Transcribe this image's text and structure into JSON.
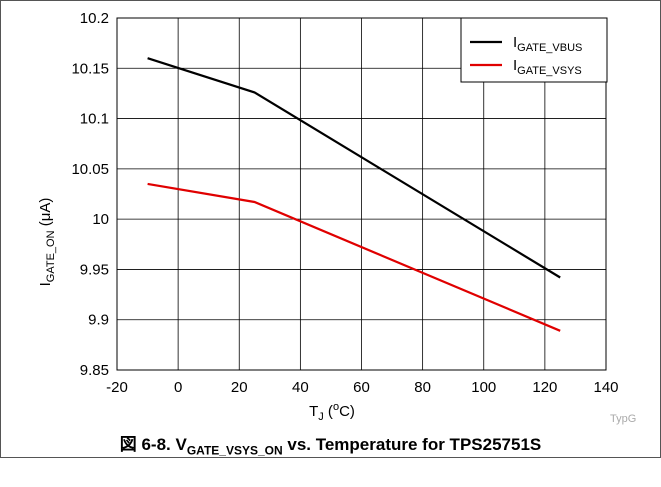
{
  "caption": {
    "prefix": "図 6-8. V",
    "sub": "GATE_VSYS_ON",
    "suffix": " vs. Temperature for TPS25751S"
  },
  "watermark": "TypG",
  "chart_data": {
    "type": "line",
    "xlabel": {
      "main": "T",
      "sub": "J",
      "rest1": " (",
      "sup": "o",
      "rest2": "C)"
    },
    "ylabel": {
      "main": "I",
      "sub": "GATE_ON",
      "rest": " (μA)"
    },
    "xlim": [
      -20,
      140
    ],
    "ylim": [
      9.85,
      10.2
    ],
    "xticks": [
      -20,
      0,
      20,
      40,
      60,
      80,
      100,
      120,
      140
    ],
    "yticks": [
      "9.85",
      "9.9",
      "9.95",
      "10",
      "10.05",
      "10.1",
      "10.15",
      "10.2"
    ],
    "grid": true,
    "legend_position": "top-right",
    "series": [
      {
        "name_main": "I",
        "name_sub": "GATE_VBUS",
        "color": "#000000",
        "x": [
          -10,
          25,
          125
        ],
        "y": [
          10.16,
          10.126,
          9.942
        ]
      },
      {
        "name_main": "I",
        "name_sub": "GATE_VSYS",
        "color": "#e00000",
        "x": [
          -10,
          25,
          125
        ],
        "y": [
          10.035,
          10.017,
          9.889
        ]
      }
    ]
  }
}
